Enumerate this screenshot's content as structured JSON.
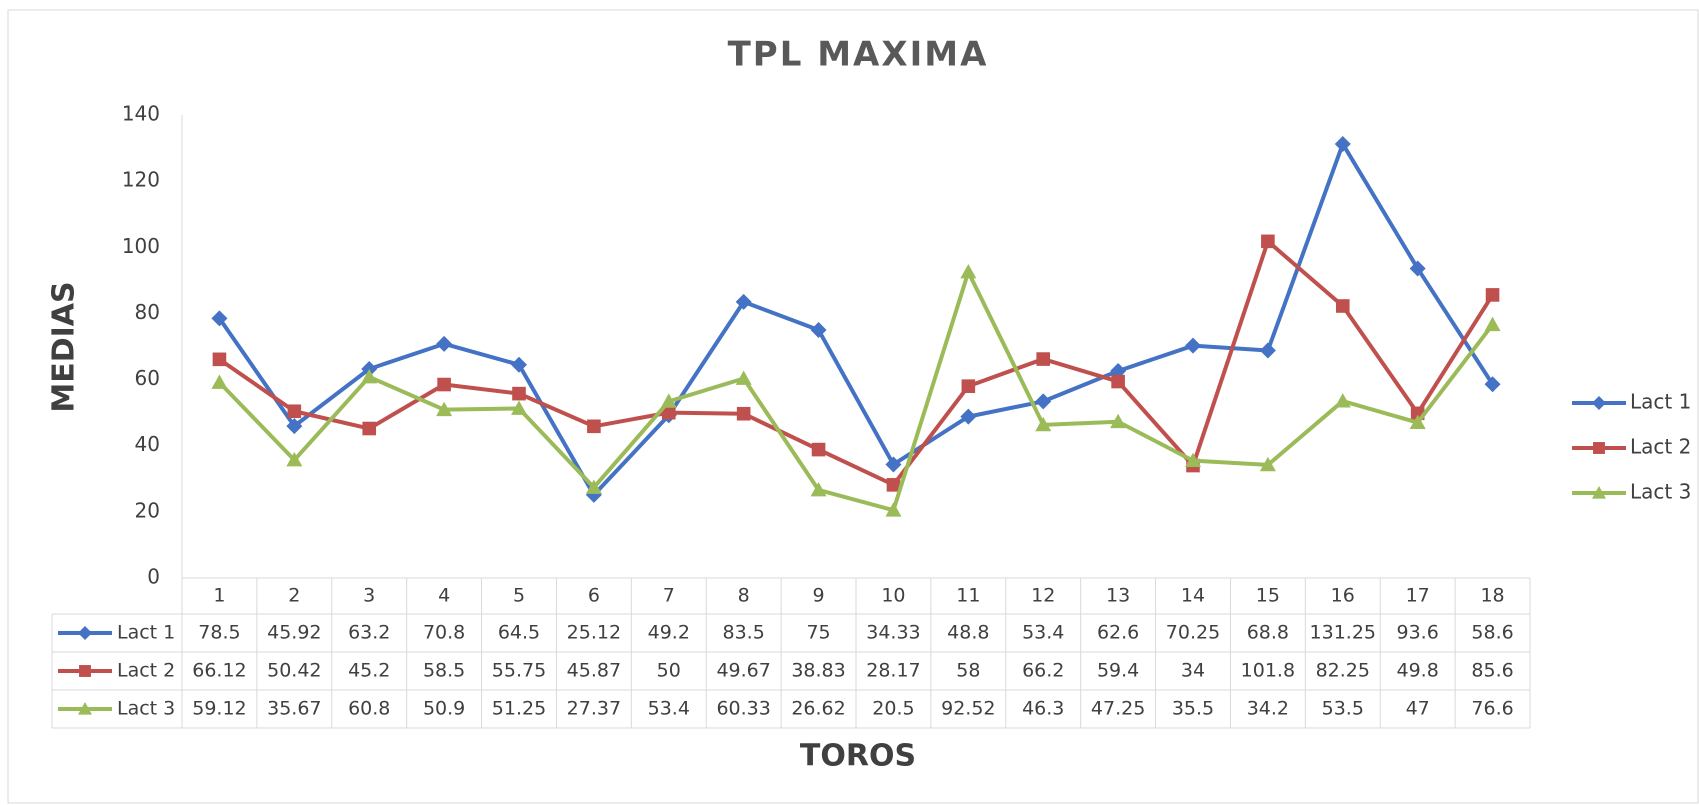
{
  "chart_data": {
    "type": "line",
    "title": "TPL MAXIMA",
    "x_label": "TOROS",
    "y_label": "MEDIAS",
    "categories": [
      "1",
      "2",
      "3",
      "4",
      "5",
      "6",
      "7",
      "8",
      "9",
      "10",
      "11",
      "12",
      "13",
      "14",
      "15",
      "16",
      "17",
      "18"
    ],
    "series": [
      {
        "name": "Lact 1",
        "color": "#4472c4",
        "marker": "diamond",
        "values": [
          78.5,
          45.92,
          63.2,
          70.8,
          64.5,
          25.12,
          49.2,
          83.5,
          75,
          34.33,
          48.8,
          53.4,
          62.6,
          70.25,
          68.8,
          131.25,
          93.6,
          58.6
        ]
      },
      {
        "name": "Lact 2",
        "color": "#c0504d",
        "marker": "square",
        "values": [
          66.12,
          50.42,
          45.2,
          58.5,
          55.75,
          45.87,
          50,
          49.67,
          38.83,
          28.17,
          58,
          66.2,
          59.4,
          34,
          101.8,
          82.25,
          49.8,
          85.6
        ]
      },
      {
        "name": "Lact 3",
        "color": "#9bbb59",
        "marker": "triangle",
        "values": [
          59.12,
          35.67,
          60.8,
          50.9,
          51.25,
          27.37,
          53.4,
          60.33,
          26.62,
          20.5,
          92.52,
          46.3,
          47.25,
          35.5,
          34.2,
          53.5,
          47,
          76.6
        ]
      }
    ],
    "ylim": [
      0,
      140
    ],
    "yticks": [
      0,
      20,
      40,
      60,
      80,
      100,
      120,
      140
    ],
    "grid": false,
    "legend": "right"
  }
}
